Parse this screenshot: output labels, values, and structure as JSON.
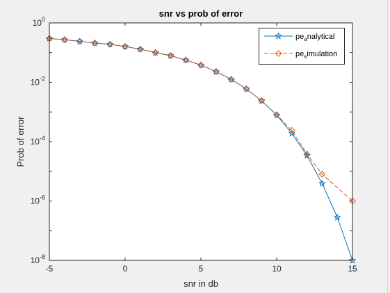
{
  "chart_data": {
    "type": "line",
    "title": "snr vs prob of error",
    "xlabel": "snr in db",
    "ylabel": "Prob of error",
    "xlim": [
      -5,
      15
    ],
    "ylim": [
      1e-08,
      1
    ],
    "yscale": "log",
    "grid": false,
    "legend_position": "top-right",
    "x_ticks": [
      "-5",
      "0",
      "5",
      "10",
      "15"
    ],
    "y_ticks": [
      {
        "base": "10",
        "exp": "0"
      },
      {
        "base": "10",
        "exp": "-2"
      },
      {
        "base": "10",
        "exp": "-4"
      },
      {
        "base": "10",
        "exp": "-6"
      },
      {
        "base": "10",
        "exp": "-8"
      }
    ],
    "series": [
      {
        "name_main": "pe",
        "name_sub": "a",
        "name_rest": "nalytical",
        "color": "#0072bd",
        "line_style": "solid",
        "marker": "star",
        "x": [
          -5,
          -4,
          -3,
          -2,
          -1,
          0,
          1,
          2,
          3,
          4,
          5,
          6,
          7,
          8,
          9,
          10,
          11,
          12,
          13,
          14,
          15
        ],
        "y": [
          0.3,
          0.27,
          0.24,
          0.21,
          0.19,
          0.16,
          0.13,
          0.1,
          0.079,
          0.056,
          0.038,
          0.023,
          0.0125,
          0.006,
          0.0024,
          0.00078,
          0.00019,
          3.4e-05,
          3.9e-06,
          2.8e-07,
          1e-08
        ]
      },
      {
        "name_main": "pe",
        "name_sub": "s",
        "name_rest": "imulation",
        "color": "#d95319",
        "line_style": "dashed",
        "marker": "diamond",
        "x": [
          -5,
          -4,
          -3,
          -2,
          -1,
          0,
          1,
          2,
          3,
          4,
          5,
          6,
          7,
          8,
          9,
          10,
          11,
          12,
          13,
          15
        ],
        "y": [
          0.3,
          0.27,
          0.24,
          0.21,
          0.19,
          0.16,
          0.13,
          0.1,
          0.079,
          0.056,
          0.038,
          0.023,
          0.0125,
          0.006,
          0.0024,
          0.0008,
          0.00024,
          3.8e-05,
          8e-06,
          1e-06
        ]
      }
    ]
  }
}
